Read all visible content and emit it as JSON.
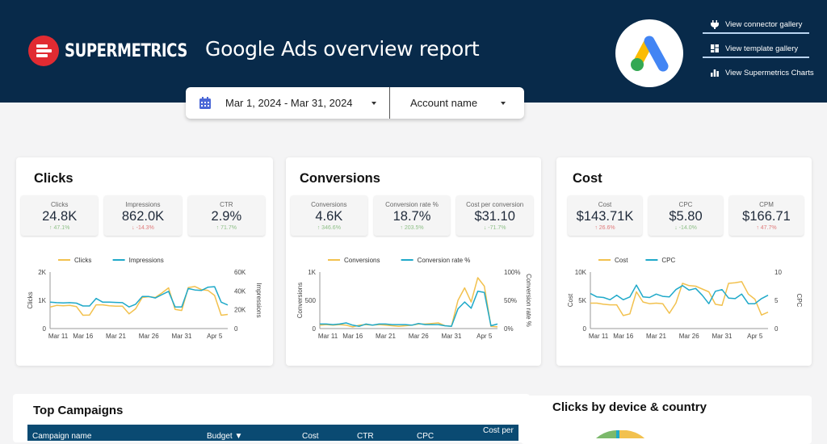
{
  "header": {
    "brand": "SUPERMETRICS",
    "title": "Google Ads overview report",
    "links": [
      {
        "icon": "plug-icon",
        "label": "View connector gallery"
      },
      {
        "icon": "grid-icon",
        "label": "View template gallery"
      },
      {
        "icon": "bar-chart-icon",
        "label": "View Supermetrics Charts"
      }
    ]
  },
  "filters": {
    "date_range": "Mar 1, 2024 - Mar 31, 2024",
    "account": "Account name"
  },
  "colors": {
    "header_bg": "#082a4a",
    "series_yellow": "#f2c14e",
    "series_teal": "#1fa9c9",
    "up": "#8dbf86",
    "down": "#e07a7a"
  },
  "cards": [
    {
      "title": "Clicks",
      "kpis": [
        {
          "label": "Clicks",
          "value": "24.8K",
          "delta": "↑ 47.1%",
          "dir": "up"
        },
        {
          "label": "Impressions",
          "value": "862.0K",
          "delta": "↓ -14.3%",
          "dir": "down"
        },
        {
          "label": "CTR",
          "value": "2.9%",
          "delta": "↑ 71.7%",
          "dir": "up"
        }
      ]
    },
    {
      "title": "Conversions",
      "kpis": [
        {
          "label": "Conversions",
          "value": "4.6K",
          "delta": "↑ 346.6%",
          "dir": "up"
        },
        {
          "label": "Conversion rate %",
          "value": "18.7%",
          "delta": "↑ 203.5%",
          "dir": "up"
        },
        {
          "label": "Cost per conversion",
          "value": "$31.10",
          "delta": "↓ -71.7%",
          "dir": "up"
        }
      ]
    },
    {
      "title": "Cost",
      "kpis": [
        {
          "label": "Cost",
          "value": "$143.71K",
          "delta": "↑ 26.6%",
          "dir": "down"
        },
        {
          "label": "CPC",
          "value": "$5.80",
          "delta": "↓ -14.0%",
          "dir": "up"
        },
        {
          "label": "CPM",
          "value": "$166.71",
          "delta": "↑ 47.7%",
          "dir": "down"
        }
      ]
    }
  ],
  "chart_data": [
    {
      "type": "line",
      "x": [
        "Mar 11",
        "Mar 12",
        "Mar 13",
        "Mar 14",
        "Mar 15",
        "Mar 16",
        "Mar 17",
        "Mar 18",
        "Mar 19",
        "Mar 20",
        "Mar 21",
        "Mar 22",
        "Mar 23",
        "Mar 24",
        "Mar 25",
        "Mar 26",
        "Mar 27",
        "Mar 28",
        "Mar 29",
        "Mar 30",
        "Mar 31",
        "Apr 1",
        "Apr 2",
        "Apr 3",
        "Apr 4",
        "Apr 5",
        "Apr 6",
        "Apr 7"
      ],
      "xticks": [
        "Mar 11",
        "Mar 16",
        "Mar 21",
        "Mar 26",
        "Mar 31",
        "Apr 5"
      ],
      "series": [
        {
          "name": "Clicks",
          "axis": "left",
          "values": [
            760,
            820,
            810,
            820,
            780,
            470,
            480,
            840,
            840,
            810,
            790,
            790,
            520,
            700,
            1100,
            1130,
            1100,
            1260,
            1440,
            680,
            640,
            1450,
            1490,
            1380,
            1350,
            1170,
            470,
            500
          ]
        },
        {
          "name": "Impressions",
          "axis": "right",
          "values": [
            28000,
            27500,
            27300,
            27500,
            27000,
            24000,
            24000,
            32000,
            28000,
            28000,
            27800,
            27500,
            23000,
            25800,
            34000,
            34000,
            32500,
            36000,
            39500,
            23000,
            23000,
            42500,
            41000,
            40500,
            44000,
            44500,
            28000,
            25000
          ]
        }
      ],
      "ylabel": "Clicks",
      "y2label": "Impressions",
      "ylim": [
        0,
        2000
      ],
      "y2lim": [
        0,
        60000
      ],
      "yticks": [
        "0",
        "1K",
        "2K"
      ],
      "y2ticks": [
        "0",
        "20K",
        "40K",
        "60K"
      ],
      "legend": [
        "Clicks",
        "Impressions"
      ]
    },
    {
      "type": "line",
      "x": [
        "Mar 11",
        "Mar 12",
        "Mar 13",
        "Mar 14",
        "Mar 15",
        "Mar 16",
        "Mar 17",
        "Mar 18",
        "Mar 19",
        "Mar 20",
        "Mar 21",
        "Mar 22",
        "Mar 23",
        "Mar 24",
        "Mar 25",
        "Mar 26",
        "Mar 27",
        "Mar 28",
        "Mar 29",
        "Mar 30",
        "Mar 31",
        "Apr 1",
        "Apr 2",
        "Apr 3",
        "Apr 4",
        "Apr 5",
        "Apr 6",
        "Apr 7"
      ],
      "xticks": [
        "Mar 11",
        "Mar 16",
        "Mar 21",
        "Mar 26",
        "Mar 31",
        "Apr 5"
      ],
      "series": [
        {
          "name": "Conversions",
          "axis": "left",
          "values": [
            60,
            70,
            60,
            70,
            60,
            30,
            60,
            70,
            60,
            70,
            60,
            50,
            40,
            50,
            60,
            80,
            80,
            90,
            100,
            50,
            40,
            500,
            720,
            470,
            900,
            750,
            40,
            30
          ]
        },
        {
          "name": "Conversion rate %",
          "axis": "right",
          "values": [
            8,
            8,
            7,
            8,
            10,
            6,
            4,
            8,
            6,
            8,
            8,
            7,
            7,
            7,
            6,
            9,
            7,
            7,
            7,
            5,
            4,
            35,
            47,
            36,
            66,
            64,
            5,
            8
          ]
        }
      ],
      "ylabel": "Conversions",
      "y2label": "Conversion rate %",
      "ylim": [
        0,
        1000
      ],
      "y2lim": [
        0,
        100
      ],
      "yticks": [
        "0",
        "500",
        "1K"
      ],
      "y2ticks": [
        "0%",
        "50%",
        "100%"
      ],
      "legend": [
        "Conversions",
        "Conversion rate %"
      ]
    },
    {
      "type": "line",
      "x": [
        "Mar 11",
        "Mar 12",
        "Mar 13",
        "Mar 14",
        "Mar 15",
        "Mar 16",
        "Mar 17",
        "Mar 18",
        "Mar 19",
        "Mar 20",
        "Mar 21",
        "Mar 22",
        "Mar 23",
        "Mar 24",
        "Mar 25",
        "Mar 26",
        "Mar 27",
        "Mar 28",
        "Mar 29",
        "Mar 30",
        "Mar 31",
        "Apr 1",
        "Apr 2",
        "Apr 3",
        "Apr 4",
        "Apr 5",
        "Apr 6",
        "Apr 7"
      ],
      "xticks": [
        "Mar 11",
        "Mar 16",
        "Mar 21",
        "Mar 26",
        "Mar 31",
        "Apr 5"
      ],
      "series": [
        {
          "name": "Cost",
          "axis": "left",
          "values": [
            4500,
            4500,
            4300,
            4200,
            4200,
            2300,
            2600,
            6500,
            4700,
            4400,
            4500,
            4400,
            2700,
            4500,
            8000,
            7600,
            7500,
            7000,
            6500,
            4300,
            4100,
            8000,
            8100,
            8300,
            6100,
            5200,
            2400,
            2900
          ]
        },
        {
          "name": "CPC",
          "axis": "right",
          "values": [
            6.2,
            5.6,
            5.5,
            5.1,
            5.9,
            5.1,
            5.6,
            7.7,
            5.6,
            5.5,
            6.1,
            5.7,
            5.6,
            6.9,
            7.6,
            6.8,
            7.1,
            5.9,
            4.4,
            6.6,
            6.9,
            5.4,
            5.3,
            6.1,
            4.4,
            4.4,
            5.3,
            5.9
          ]
        }
      ],
      "ylabel": "Cost",
      "y2label": "CPC",
      "ylim": [
        0,
        10000
      ],
      "y2lim": [
        0,
        10
      ],
      "yticks": [
        "0",
        "5K",
        "10K"
      ],
      "y2ticks": [
        "0",
        "5",
        "10"
      ],
      "legend": [
        "Cost",
        "CPC"
      ]
    }
  ],
  "top_campaigns": {
    "title": "Top Campaigns",
    "columns": [
      "Campaign name",
      "Budget ▼",
      "Cost",
      "CTR",
      "CPC",
      "Cost per"
    ]
  },
  "device_country": {
    "title": "Clicks by device & country"
  }
}
